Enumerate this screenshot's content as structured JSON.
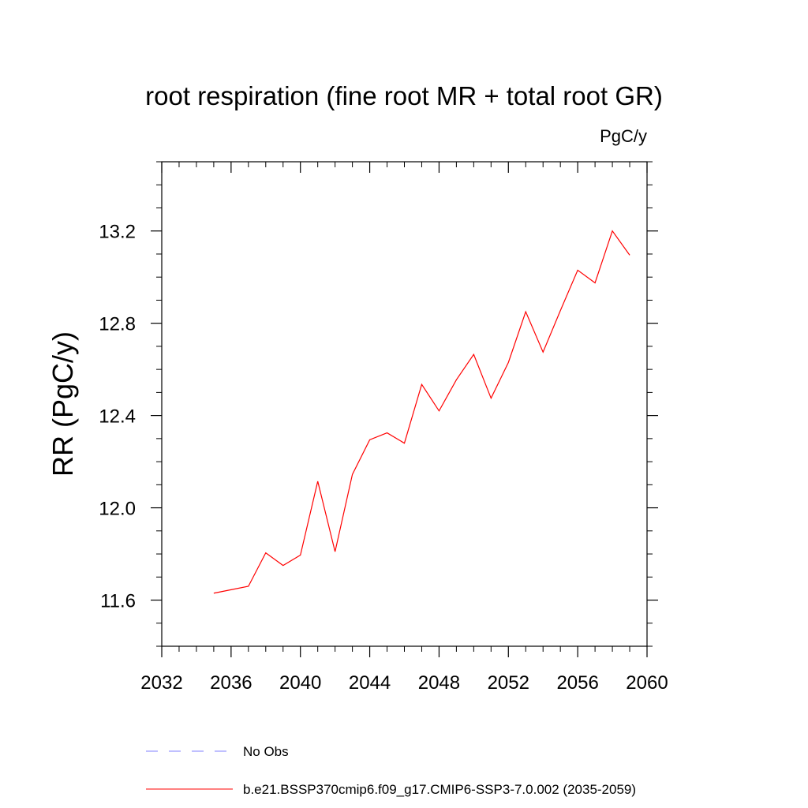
{
  "chart_data": {
    "type": "line",
    "title": "root respiration (fine root MR + total root GR)",
    "units": "PgC/y",
    "xlabel": "",
    "ylabel": "RR  (PgC/y)",
    "xlim": [
      2032,
      2060
    ],
    "ylim": [
      11.4,
      13.5
    ],
    "x_ticks": [
      2032,
      2036,
      2040,
      2044,
      2048,
      2052,
      2056,
      2060
    ],
    "y_ticks": [
      11.6,
      12.0,
      12.4,
      12.8,
      13.2
    ],
    "y_tick_labels": [
      "11.6",
      "12.0",
      "12.4",
      "12.8",
      "13.2"
    ],
    "series": [
      {
        "name": "b.e21.BSSP370cmip6.f09_g17.CMIP6-SSP3-7.0.002 (2035-2059)",
        "color": "#ff0000",
        "x": [
          2035,
          2036,
          2037,
          2038,
          2039,
          2040,
          2041,
          2042,
          2043,
          2044,
          2045,
          2046,
          2047,
          2048,
          2049,
          2050,
          2051,
          2052,
          2053,
          2054,
          2055,
          2056,
          2057,
          2058,
          2059
        ],
        "y": [
          11.63,
          11.645,
          11.66,
          11.805,
          11.75,
          11.795,
          12.115,
          11.81,
          12.145,
          12.295,
          12.325,
          12.28,
          12.535,
          12.42,
          12.555,
          12.665,
          12.475,
          12.63,
          12.85,
          12.675,
          12.855,
          13.03,
          12.975,
          13.2,
          13.095
        ]
      }
    ],
    "legend": [
      {
        "label": "No Obs",
        "color": "#8080ff",
        "style": "dashed"
      },
      {
        "label": "b.e21.BSSP370cmip6.f09_g17.CMIP6-SSP3-7.0.002 (2035-2059)",
        "color": "#ff0000",
        "style": "solid"
      }
    ],
    "grid": false,
    "legend_position": "bottom"
  }
}
